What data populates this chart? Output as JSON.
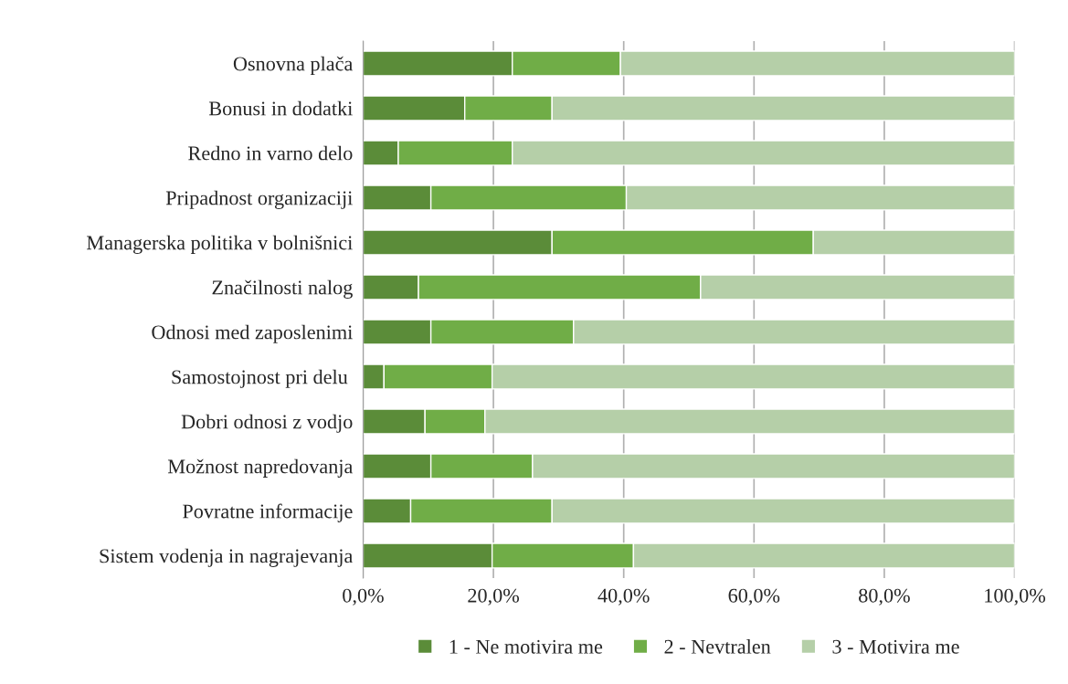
{
  "chart_data": {
    "type": "bar",
    "orientation": "horizontal",
    "stacked": true,
    "categories": [
      "Osnovna plača",
      "Bonusi in dodatki",
      "Redno in varno delo",
      "Pripadnost organizaciji",
      "Managerska politika v bolnišnici",
      "Značilnosti nalog",
      "Odnosi med zaposlenimi",
      "Samostojnost pri delu ",
      "Dobri odnosi z vodjo",
      "Možnost napredovanja",
      "Povratne informacije",
      "Sistem vodenja in nagrajevanja"
    ],
    "series": [
      {
        "name": "1 - Ne motivira me",
        "color": "#5b8c39",
        "values": [
          22.9,
          15.6,
          5.4,
          10.4,
          29.0,
          8.5,
          10.4,
          3.2,
          9.5,
          10.4,
          7.3,
          19.8
        ]
      },
      {
        "name": "2 - Nevtralen",
        "color": "#70ad47",
        "values": [
          16.6,
          13.4,
          17.5,
          30.0,
          40.1,
          43.3,
          21.9,
          16.6,
          9.2,
          15.6,
          21.7,
          21.7
        ]
      },
      {
        "name": "3 - Motivira me",
        "color": "#b5cfa8",
        "values": [
          60.5,
          71.0,
          77.1,
          59.6,
          30.9,
          48.2,
          67.7,
          80.2,
          81.3,
          74.0,
          71.0,
          58.5
        ]
      }
    ],
    "xlim": [
      0,
      100
    ],
    "xticks": [
      {
        "value": 0,
        "label": "0,0%"
      },
      {
        "value": 20,
        "label": "20,0%"
      },
      {
        "value": 40,
        "label": "40,0%"
      },
      {
        "value": 60,
        "label": "60,0%"
      },
      {
        "value": 80,
        "label": "80,0%"
      },
      {
        "value": 100,
        "label": "100,0%"
      }
    ],
    "grid": "x",
    "legend": "bottom"
  }
}
